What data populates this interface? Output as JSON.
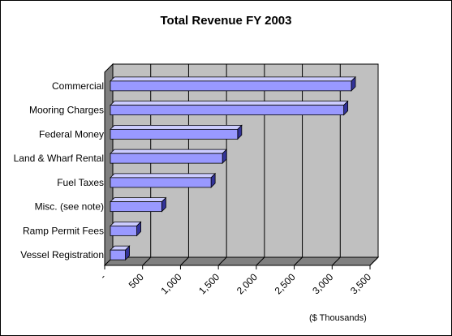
{
  "chart_data": {
    "type": "bar",
    "orientation": "horizontal",
    "style": "3d",
    "title": "Total Revenue FY 2003",
    "unit_note": "($ Thousands)",
    "categories": [
      "Commercial",
      "Mooring Charges",
      "Federal Money",
      "Land & Wharf Rental",
      "Fuel Taxes",
      "Misc. (see note)",
      "Ramp Permit Fees",
      "Vessel Registration"
    ],
    "values": [
      3200,
      3100,
      1700,
      1500,
      1350,
      700,
      370,
      220
    ],
    "xlim": [
      0,
      3500
    ],
    "tick_labels": [
      "-",
      "500",
      "1,000",
      "1,500",
      "2,000",
      "2,500",
      "3,000",
      "3,500"
    ],
    "grid": true,
    "legend": "none",
    "colors": {
      "bar_front": "#9999ff",
      "bar_top": "#ccccff",
      "bar_side": "#333399",
      "wall": "#c0c0c0",
      "floor": "#808080"
    }
  }
}
